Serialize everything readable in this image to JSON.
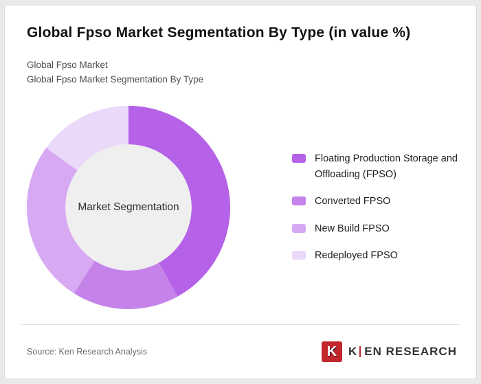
{
  "header": {
    "title": "Global Fpso Market Segmentation By Type (in value %)",
    "subtitle1": "Global Fpso Market",
    "subtitle2": "Global Fpso Market Segmentation By Type"
  },
  "chart_data": {
    "type": "pie",
    "variant": "donut",
    "title": "Global Fpso Market Segmentation By Type (in value %)",
    "center_label": "Market Segmentation",
    "center_fill": "#efefef",
    "start_angle_deg": 0,
    "inner_radius_ratio": 0.62,
    "legend_position": "right",
    "segments": [
      {
        "label": "Floating Production Storage and Offloading (FPSO)",
        "value": 42,
        "color": "#b561e8"
      },
      {
        "label": "Converted FPSO",
        "value": 17,
        "color": "#c583ea"
      },
      {
        "label": "New Build FPSO",
        "value": 26,
        "color": "#d8a9f3"
      },
      {
        "label": "Redeployed FPSO",
        "value": 15,
        "color": "#ebd9fa"
      }
    ]
  },
  "footer": {
    "source": "Source: Ken Research Analysis",
    "logo": {
      "icon_letter": "K",
      "text_k": "K",
      "text_rest": "EN RESEARCH",
      "brand_red": "#c1272d"
    }
  }
}
